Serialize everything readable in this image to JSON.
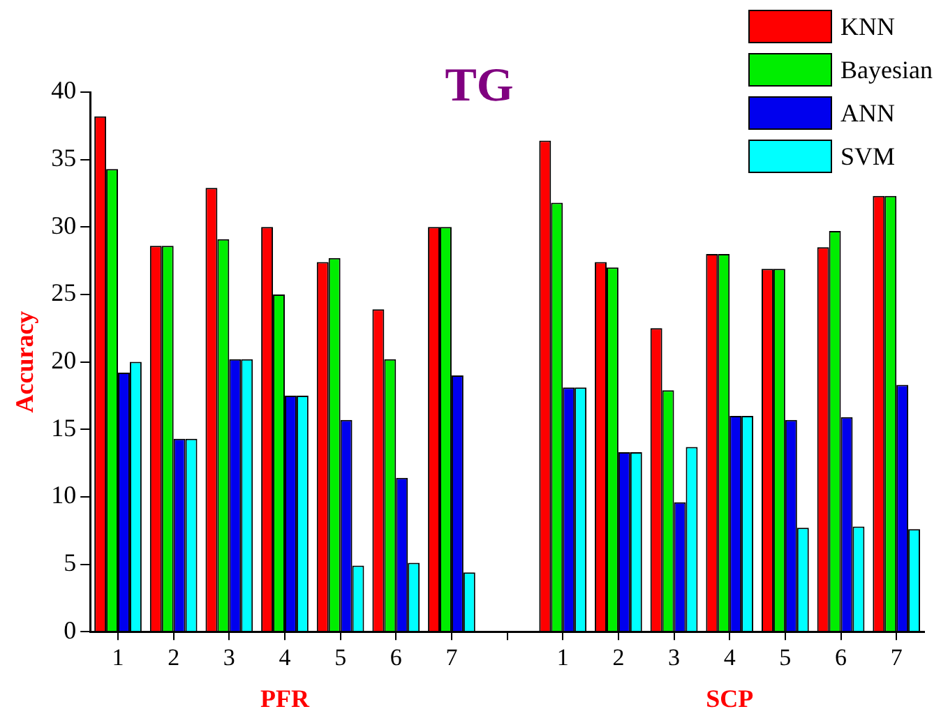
{
  "chart_data": {
    "type": "bar",
    "title": "TG",
    "ylabel": "Accuracy",
    "categories": [
      "1",
      "2",
      "3",
      "4",
      "5",
      "6",
      "7",
      null,
      "1",
      "2",
      "3",
      "4",
      "5",
      "6",
      "7"
    ],
    "series": [
      {
        "name": "KNN",
        "color": "#ff0000",
        "values": [
          38.2,
          28.6,
          32.9,
          30.0,
          27.4,
          23.9,
          30.0,
          null,
          36.4,
          27.4,
          22.5,
          28.0,
          26.9,
          28.5,
          32.3
        ]
      },
      {
        "name": "Bayesian",
        "color": "#00ee00",
        "values": [
          34.3,
          28.6,
          29.1,
          25.0,
          27.7,
          20.2,
          30.0,
          null,
          31.8,
          27.0,
          17.9,
          28.0,
          26.9,
          29.7,
          32.3
        ]
      },
      {
        "name": "ANN",
        "color": "#0000ee",
        "values": [
          19.2,
          14.3,
          20.2,
          17.5,
          15.7,
          11.4,
          19.0,
          null,
          18.1,
          13.3,
          9.6,
          16.0,
          15.7,
          15.9,
          18.3
        ]
      },
      {
        "name": "SVM",
        "color": "#00ffff",
        "values": [
          20.0,
          14.3,
          20.2,
          17.5,
          4.9,
          5.1,
          4.4,
          null,
          18.1,
          13.3,
          13.7,
          16.0,
          7.7,
          7.8,
          7.6
        ]
      }
    ],
    "ylim": [
      0,
      40
    ],
    "yticks": [
      0,
      5,
      10,
      15,
      20,
      25,
      30,
      35,
      40
    ],
    "annotations": [
      "PFR",
      "SCP"
    ],
    "legend": "top right",
    "grid": false
  }
}
